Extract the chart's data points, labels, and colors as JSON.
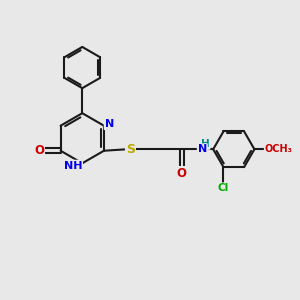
{
  "bg_color": "#e8e8e8",
  "atom_colors": {
    "C": "#1a1a1a",
    "N": "#0000ee",
    "O": "#cc0000",
    "S": "#bbaa00",
    "Cl": "#00aa00",
    "H": "#008888"
  },
  "bond_color": "#1a1a1a",
  "bond_lw": 1.5,
  "font_size": 7.5
}
